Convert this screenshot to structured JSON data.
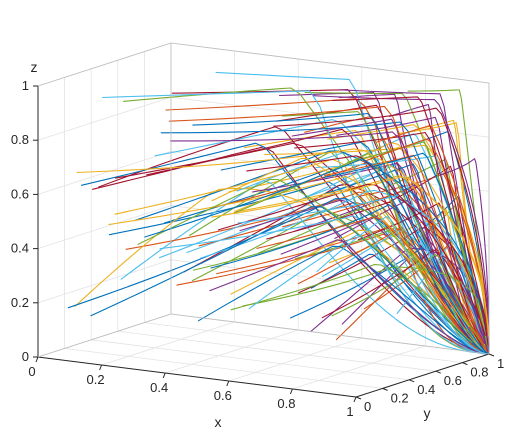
{
  "chart_data": {
    "type": "line",
    "subtype": "3d-trajectories",
    "title": "",
    "xlabel": "x",
    "ylabel": "y",
    "zlabel": "z",
    "xlim": [
      0,
      1
    ],
    "ylim": [
      0,
      1
    ],
    "zlim": [
      0,
      1
    ],
    "grid": true,
    "box": true,
    "xticks": [
      "0",
      "0.2",
      "0.4",
      "0.6",
      "0.8",
      "1"
    ],
    "yticks": [
      "0",
      "0.2",
      "0.4",
      "0.6",
      "0.8",
      "1"
    ],
    "zticks": [
      "0",
      "0.2",
      "0.4",
      "0.6",
      "0.8",
      "1"
    ],
    "attractor": {
      "x": 1,
      "y": 1,
      "z": 0
    },
    "trajectory_count": 120,
    "series_colors": [
      "#0072bd",
      "#d95319",
      "#edb120",
      "#7e2f8e",
      "#77ac30",
      "#4dbeee",
      "#a2142f"
    ]
  }
}
